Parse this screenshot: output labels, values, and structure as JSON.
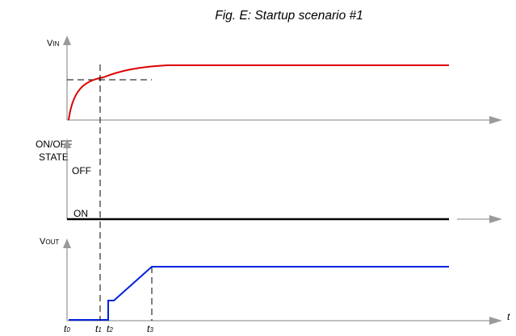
{
  "title": "Fig. E: Startup scenario #1",
  "vin": {
    "label_main": "V",
    "label_sub": "IN"
  },
  "onoff": {
    "label_line1": "ON/OFF",
    "label_line2": "STATE",
    "off_label": "OFF",
    "on_label": "ON"
  },
  "vout": {
    "label_main": "V",
    "label_sub": "OUT"
  },
  "time_axis_label": "t",
  "time_markers": [
    {
      "main": "t",
      "sub": "0"
    },
    {
      "main": "t",
      "sub": "1"
    },
    {
      "main": "t",
      "sub": "2"
    },
    {
      "main": "t",
      "sub": "3"
    }
  ],
  "colors": {
    "vin_trace": "#dd0000",
    "onoff_trace": "#000000",
    "vout_trace": "#0022dd",
    "axes": "#9a9a9a"
  }
}
